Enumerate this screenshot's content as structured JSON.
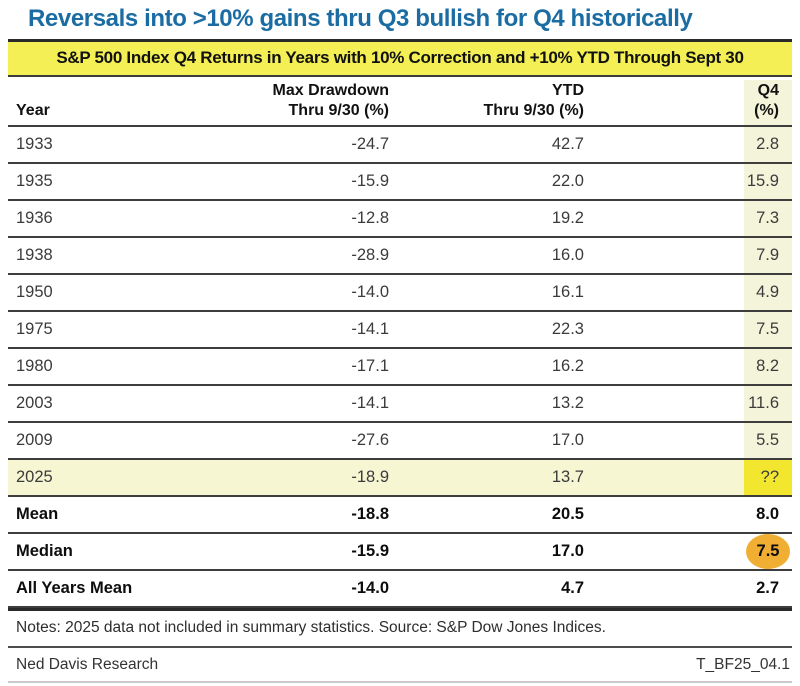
{
  "title": "Reversals into >10% gains thru Q3 bullish for Q4 historically",
  "subtitle": "S&P 500 Index Q4 Returns in Years with 10% Correction and +10% YTD Through Sept 30",
  "colors": {
    "title_blue": "#1b6ca3",
    "band_yellow": "#f3ef55",
    "q4_column_tint": "#f4f4da",
    "highlight_row_yellow": "#f6f6d3",
    "q4_unknown_yellow": "#f2e72e",
    "circle_orange": "#f0ae32"
  },
  "table": {
    "header": {
      "year": "Year",
      "max_drawdown_line1": "Max Drawdown",
      "max_drawdown_line2": "Thru 9/30 (%)",
      "ytd_line1": "YTD",
      "ytd_line2": "Thru 9/30 (%)",
      "q4_line1": "Q4",
      "q4_line2": "(%)"
    },
    "rows": [
      {
        "year": "1933",
        "max_drawdown": "-24.7",
        "ytd": "42.7",
        "q4": "2.8"
      },
      {
        "year": "1935",
        "max_drawdown": "-15.9",
        "ytd": "22.0",
        "q4": "15.9"
      },
      {
        "year": "1936",
        "max_drawdown": "-12.8",
        "ytd": "19.2",
        "q4": "7.3"
      },
      {
        "year": "1938",
        "max_drawdown": "-28.9",
        "ytd": "16.0",
        "q4": "7.9"
      },
      {
        "year": "1950",
        "max_drawdown": "-14.0",
        "ytd": "16.1",
        "q4": "4.9"
      },
      {
        "year": "1975",
        "max_drawdown": "-14.1",
        "ytd": "22.3",
        "q4": "7.5"
      },
      {
        "year": "1980",
        "max_drawdown": "-17.1",
        "ytd": "16.2",
        "q4": "8.2"
      },
      {
        "year": "2003",
        "max_drawdown": "-14.1",
        "ytd": "13.2",
        "q4": "11.6"
      },
      {
        "year": "2009",
        "max_drawdown": "-27.6",
        "ytd": "17.0",
        "q4": "5.5"
      },
      {
        "year": "2025",
        "max_drawdown": "-18.9",
        "ytd": "13.7",
        "q4": "??",
        "row_highlight": true,
        "q4_bright": true
      }
    ],
    "summary_rows": [
      {
        "label": "Mean",
        "max_drawdown": "-18.8",
        "ytd": "20.5",
        "q4": "8.0"
      },
      {
        "label": "Median",
        "max_drawdown": "-15.9",
        "ytd": "17.0",
        "q4": "7.5",
        "q4_circled": true
      },
      {
        "label": "All Years Mean",
        "max_drawdown": "-14.0",
        "ytd": "4.7",
        "q4": "2.7"
      }
    ]
  },
  "notes": "Notes: 2025 data not included in summary statistics. Source: S&P Dow Jones Indices.",
  "footer": {
    "left": "Ned Davis Research",
    "right": "T_BF25_04.1"
  },
  "chart_data": {
    "type": "table",
    "title": "S&P 500 Index Q4 Returns in Years with 10% Correction and +10% YTD Through Sept 30",
    "columns": [
      "Year",
      "Max Drawdown Thru 9/30 (%)",
      "YTD Thru 9/30 (%)",
      "Q4 (%)"
    ],
    "rows": [
      [
        1933,
        -24.7,
        42.7,
        2.8
      ],
      [
        1935,
        -15.9,
        22.0,
        15.9
      ],
      [
        1936,
        -12.8,
        19.2,
        7.3
      ],
      [
        1938,
        -28.9,
        16.0,
        7.9
      ],
      [
        1950,
        -14.0,
        16.1,
        4.9
      ],
      [
        1975,
        -14.1,
        22.3,
        7.5
      ],
      [
        1980,
        -17.1,
        16.2,
        8.2
      ],
      [
        2003,
        -14.1,
        13.2,
        11.6
      ],
      [
        2009,
        -27.6,
        17.0,
        5.5
      ],
      [
        "2025",
        -18.9,
        13.7,
        "??"
      ]
    ],
    "summary": [
      [
        "Mean",
        -18.8,
        20.5,
        8.0
      ],
      [
        "Median",
        -15.9,
        17.0,
        7.5
      ],
      [
        "All Years Mean",
        -14.0,
        4.7,
        2.7
      ]
    ],
    "annotations": [
      "2025 row highlighted yellow, Q4 value unknown (??)",
      "Median Q4 value 7.5 circled in orange"
    ]
  }
}
